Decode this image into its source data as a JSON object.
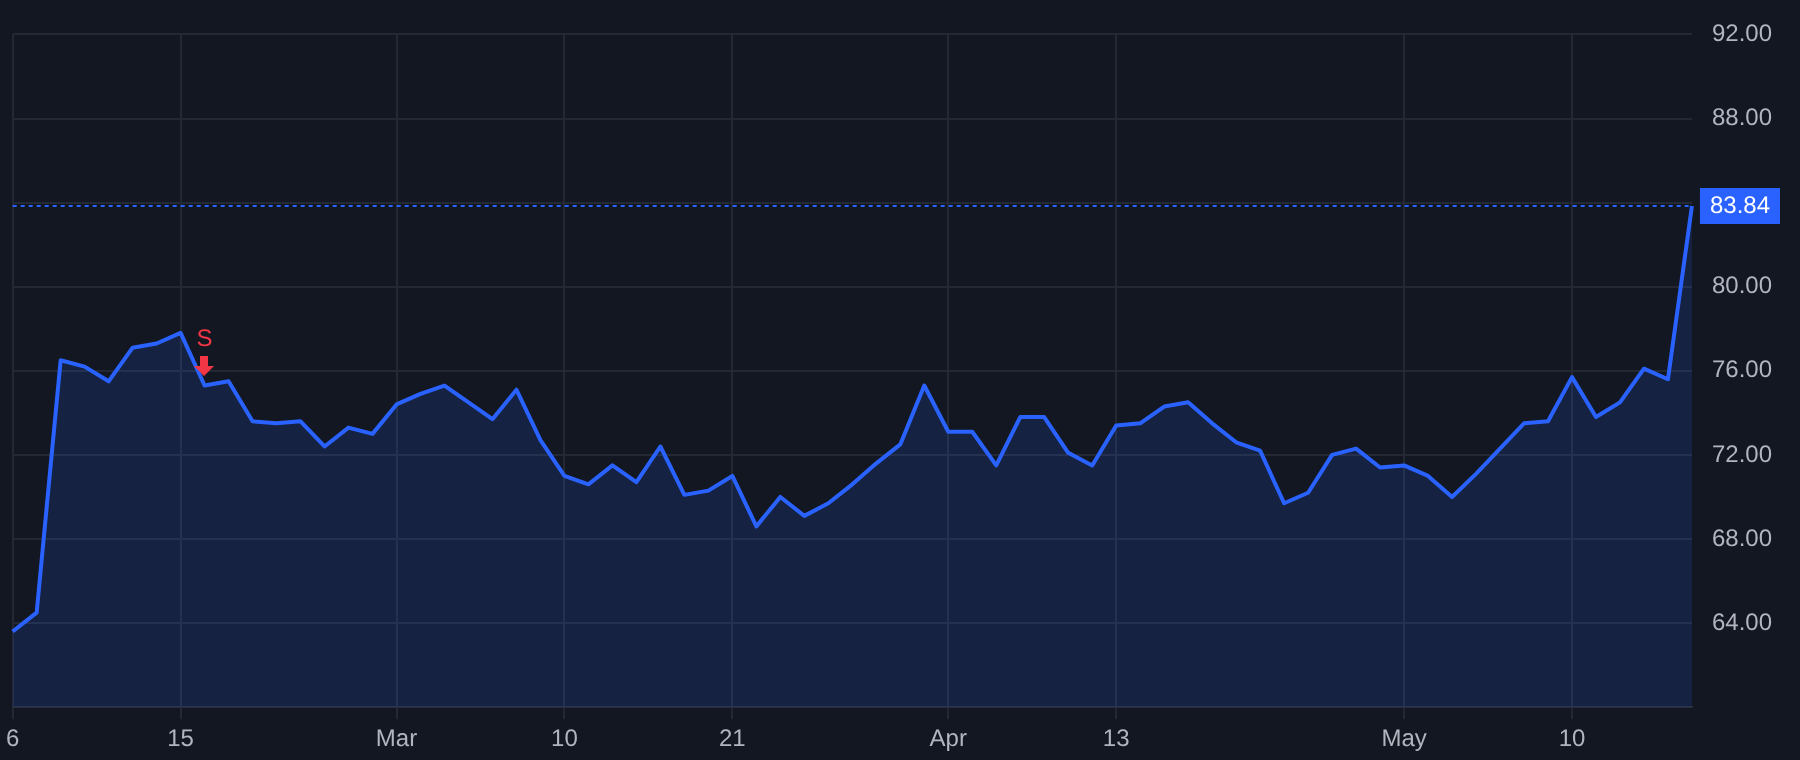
{
  "chart_data": {
    "type": "area",
    "categories": [
      "6",
      null,
      null,
      null,
      null,
      null,
      null,
      "15",
      null,
      null,
      null,
      null,
      null,
      null,
      null,
      null,
      "Mar",
      null,
      null,
      null,
      null,
      null,
      null,
      "10",
      null,
      null,
      null,
      null,
      null,
      null,
      "21",
      null,
      null,
      null,
      null,
      null,
      null,
      null,
      null,
      "Apr",
      null,
      null,
      null,
      null,
      null,
      null,
      "13",
      null,
      null,
      null,
      null,
      null,
      null,
      null,
      null,
      null,
      null,
      null,
      "May",
      null,
      null,
      null,
      null,
      null,
      null,
      "10",
      null,
      null,
      null,
      null,
      null
    ],
    "series": [
      {
        "color": "#2962ff",
        "values": [
          63.6,
          64.5,
          76.5,
          76.2,
          75.5,
          77.1,
          77.3,
          77.8,
          75.3,
          75.5,
          73.6,
          73.5,
          73.6,
          72.4,
          73.3,
          73.0,
          74.4,
          74.9,
          75.3,
          74.5,
          73.7,
          75.1,
          72.7,
          71.0,
          70.6,
          71.5,
          70.7,
          72.4,
          70.1,
          70.3,
          71.0,
          68.6,
          70.0,
          69.1,
          69.7,
          70.6,
          71.6,
          72.5,
          75.3,
          73.1,
          73.1,
          71.5,
          73.8,
          73.8,
          72.1,
          71.5,
          73.4,
          73.5,
          74.3,
          74.5,
          73.5,
          72.6,
          72.2,
          69.7,
          70.2,
          72.0,
          72.3,
          71.4,
          71.5,
          71.0,
          70.0,
          71.1,
          72.3,
          73.5,
          73.6,
          75.7,
          73.8,
          74.5,
          76.1,
          75.6,
          83.84
        ]
      }
    ],
    "ylim": [
      60,
      92
    ],
    "yticks": [
      {
        "value": 64,
        "label": "64.00"
      },
      {
        "value": 68,
        "label": "68.00"
      },
      {
        "value": 72,
        "label": "72.00"
      },
      {
        "value": 76,
        "label": "76.00"
      },
      {
        "value": 80,
        "label": "80.00"
      },
      {
        "value": 84,
        "label": null
      },
      {
        "value": 88,
        "label": "88.00"
      },
      {
        "value": 92,
        "label": "92.00"
      }
    ],
    "grid": true,
    "legend": false,
    "marker": "none",
    "line_style": "solid",
    "ref_lines": [
      {
        "axis": "y",
        "value": 83.84,
        "label": "83.84",
        "color": "#2962ff",
        "line_style": "dotted"
      }
    ],
    "annotations": [
      "S"
    ]
  }
}
